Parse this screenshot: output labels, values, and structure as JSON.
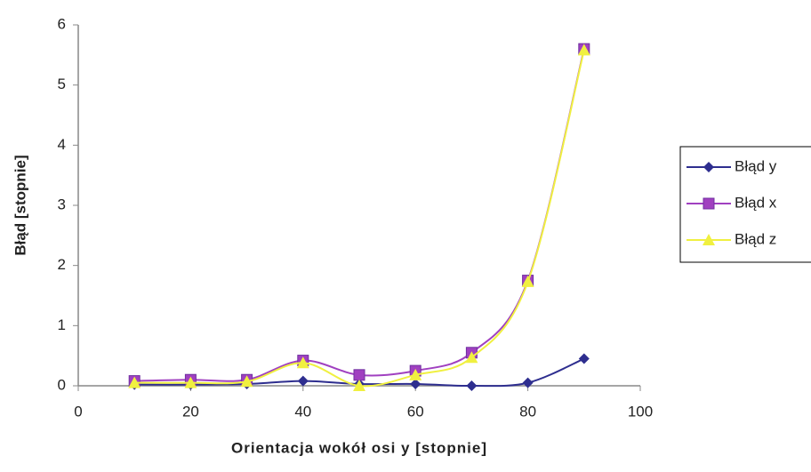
{
  "chart_data": {
    "type": "line",
    "smooth": true,
    "x_label": "Orientacja wokół osi y [stopnie]",
    "y_label": "Błąd [stopnie]",
    "x": [
      10,
      20,
      30,
      40,
      50,
      60,
      70,
      80,
      90
    ],
    "series": [
      {
        "name": "Błąd y",
        "color": "#2e2e8f",
        "marker": "diamond",
        "values": [
          0.02,
          0.02,
          0.03,
          0.08,
          0.03,
          0.03,
          0.0,
          0.05,
          0.45
        ]
      },
      {
        "name": "Błąd x",
        "color": "#a040c0",
        "marker": "square",
        "values": [
          0.08,
          0.1,
          0.1,
          0.42,
          0.18,
          0.25,
          0.55,
          1.75,
          5.6
        ]
      },
      {
        "name": "Błąd z",
        "color": "#f0f040",
        "marker": "triangle",
        "values": [
          0.05,
          0.05,
          0.07,
          0.38,
          0.0,
          0.18,
          0.47,
          1.73,
          5.58
        ]
      }
    ],
    "xlim": [
      0,
      100
    ],
    "xticks": [
      0,
      20,
      40,
      60,
      80,
      100
    ],
    "ylim": [
      0,
      6
    ],
    "yticks": [
      0,
      1,
      2,
      3,
      4,
      5,
      6
    ],
    "grid": false,
    "legend": "right"
  }
}
